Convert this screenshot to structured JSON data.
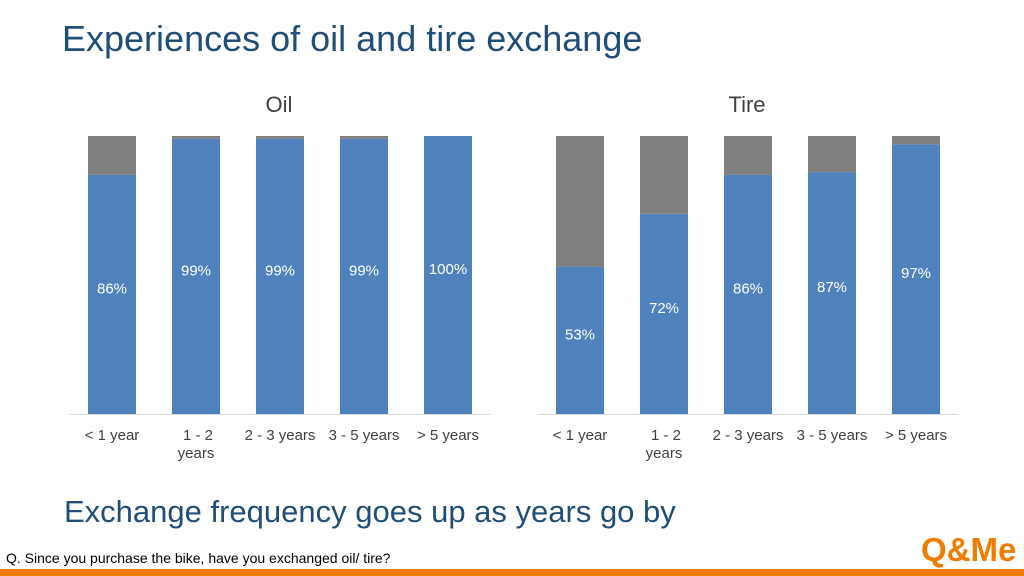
{
  "slide": {
    "title": "Experiences of oil and tire exchange",
    "conclusion": "Exchange frequency goes up as years go by",
    "question": "Q. Since you purchase the bike, have you exchanged oil/ tire?"
  },
  "logo": {
    "text": "Q&Me",
    "color": "#f07d00"
  },
  "colors": {
    "yes": "#4f81bd",
    "no": "#7f7f7f",
    "accent": "#f07d00",
    "title": "#1f4e79"
  },
  "chart_data": [
    {
      "type": "bar",
      "stacked": true,
      "title": "Oil",
      "categories": [
        "< 1 year",
        "1 - 2 years",
        "2 - 3 years",
        "3 - 5 years",
        "> 5 years"
      ],
      "series": [
        {
          "values": [
            86,
            99,
            99,
            99,
            100
          ],
          "labels": [
            "86%",
            "99%",
            "99%",
            "99%",
            "100%"
          ],
          "color": "#4f81bd"
        },
        {
          "values": [
            14,
            1,
            1,
            1,
            0
          ],
          "color": "#7f7f7f"
        }
      ],
      "ylim": [
        0,
        100
      ],
      "grid": false,
      "legend": "none"
    },
    {
      "type": "bar",
      "stacked": true,
      "title": "Tire",
      "categories": [
        "< 1 year",
        "1 - 2 years",
        "2 - 3 years",
        "3 - 5 years",
        "> 5 years"
      ],
      "series": [
        {
          "values": [
            53,
            72,
            86,
            87,
            97
          ],
          "labels": [
            "53%",
            "72%",
            "86%",
            "87%",
            "97%"
          ],
          "color": "#4f81bd"
        },
        {
          "values": [
            47,
            28,
            14,
            13,
            3
          ],
          "color": "#7f7f7f"
        }
      ],
      "ylim": [
        0,
        100
      ],
      "grid": false,
      "legend": "none"
    }
  ]
}
